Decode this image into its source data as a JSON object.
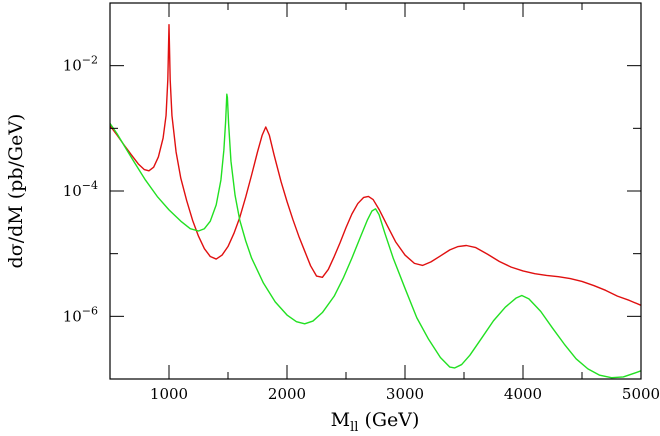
{
  "chart_data": {
    "type": "line",
    "xlabel_main": "M",
    "xlabel_sub": "ll",
    "xlabel_rest": "(GeV)",
    "ylabel": "dσ/dM (pb/GeV)",
    "y_scale": "log",
    "xlim": [
      500,
      5000
    ],
    "ylim": [
      1e-07,
      0.1
    ],
    "x_ticks": [
      {
        "value": 1000,
        "label": "1000"
      },
      {
        "value": 2000,
        "label": "2000"
      },
      {
        "value": 3000,
        "label": "3000"
      },
      {
        "value": 4000,
        "label": "4000"
      },
      {
        "value": 5000,
        "label": "5000"
      }
    ],
    "y_ticks": [
      {
        "value": 0.01,
        "base": "10",
        "exp": "−2"
      },
      {
        "value": 0.0001,
        "base": "10",
        "exp": "−4"
      },
      {
        "value": 1e-06,
        "base": "10",
        "exp": "−6"
      }
    ],
    "grid": false,
    "series": [
      {
        "color": "#e01010",
        "points": [
          [
            500,
            0.0011
          ],
          [
            560,
            0.00078
          ],
          [
            620,
            0.00054
          ],
          [
            680,
            0.00038
          ],
          [
            740,
            0.00027
          ],
          [
            790,
            0.00022
          ],
          [
            830,
            0.00021
          ],
          [
            870,
            0.00024
          ],
          [
            910,
            0.00035
          ],
          [
            950,
            0.0007
          ],
          [
            975,
            0.0016
          ],
          [
            990,
            0.006
          ],
          [
            1000,
            0.045
          ],
          [
            1010,
            0.006
          ],
          [
            1025,
            0.0016
          ],
          [
            1060,
            0.00042
          ],
          [
            1100,
            0.00016
          ],
          [
            1150,
            7e-05
          ],
          [
            1200,
            3.4e-05
          ],
          [
            1250,
            1.9e-05
          ],
          [
            1300,
            1.2e-05
          ],
          [
            1350,
            9e-06
          ],
          [
            1400,
            8.2e-06
          ],
          [
            1450,
            9.5e-06
          ],
          [
            1500,
            1.3e-05
          ],
          [
            1550,
            2.1e-05
          ],
          [
            1600,
            3.8e-05
          ],
          [
            1650,
            8e-05
          ],
          [
            1700,
            0.00018
          ],
          [
            1750,
            0.00042
          ],
          [
            1790,
            0.00078
          ],
          [
            1820,
            0.00105
          ],
          [
            1850,
            0.00078
          ],
          [
            1890,
            0.00038
          ],
          [
            1950,
            0.00014
          ],
          [
            2000,
            6.8e-05
          ],
          [
            2050,
            3.5e-05
          ],
          [
            2100,
            1.9e-05
          ],
          [
            2150,
            1.1e-05
          ],
          [
            2200,
            6.4e-06
          ],
          [
            2250,
            4.4e-06
          ],
          [
            2300,
            4.2e-06
          ],
          [
            2350,
            5.6e-06
          ],
          [
            2400,
            9e-06
          ],
          [
            2450,
            1.5e-05
          ],
          [
            2500,
            2.6e-05
          ],
          [
            2550,
            4.3e-05
          ],
          [
            2600,
            6.3e-05
          ],
          [
            2650,
            7.9e-05
          ],
          [
            2690,
            8.2e-05
          ],
          [
            2730,
            7.3e-05
          ],
          [
            2780,
            5.1e-05
          ],
          [
            2850,
            2.8e-05
          ],
          [
            2920,
            1.55e-05
          ],
          [
            3000,
            9.5e-06
          ],
          [
            3080,
            7e-06
          ],
          [
            3150,
            6.5e-06
          ],
          [
            3220,
            7.4e-06
          ],
          [
            3300,
            9.2e-06
          ],
          [
            3380,
            1.15e-05
          ],
          [
            3450,
            1.3e-05
          ],
          [
            3520,
            1.35e-05
          ],
          [
            3600,
            1.25e-05
          ],
          [
            3700,
            9.8e-06
          ],
          [
            3800,
            7.5e-06
          ],
          [
            3900,
            6.1e-06
          ],
          [
            4000,
            5.3e-06
          ],
          [
            4100,
            4.8e-06
          ],
          [
            4200,
            4.5e-06
          ],
          [
            4300,
            4.3e-06
          ],
          [
            4400,
            4e-06
          ],
          [
            4500,
            3.6e-06
          ],
          [
            4600,
            3.1e-06
          ],
          [
            4700,
            2.6e-06
          ],
          [
            4800,
            2.1e-06
          ],
          [
            4900,
            1.8e-06
          ],
          [
            5000,
            1.5e-06
          ]
        ]
      },
      {
        "color": "#22e022",
        "points": [
          [
            500,
            0.0012
          ],
          [
            560,
            0.00082
          ],
          [
            620,
            0.00053
          ],
          [
            700,
            0.0003
          ],
          [
            800,
            0.00015
          ],
          [
            900,
            8.2e-05
          ],
          [
            1000,
            5e-05
          ],
          [
            1100,
            3.3e-05
          ],
          [
            1180,
            2.5e-05
          ],
          [
            1250,
            2.3e-05
          ],
          [
            1300,
            2.5e-05
          ],
          [
            1350,
            3.3e-05
          ],
          [
            1400,
            6e-05
          ],
          [
            1440,
            0.00015
          ],
          [
            1465,
            0.00045
          ],
          [
            1480,
            0.0013
          ],
          [
            1490,
            0.0035
          ],
          [
            1495,
            0.0031
          ],
          [
            1505,
            0.0012
          ],
          [
            1525,
            0.0003
          ],
          [
            1560,
            8.5e-05
          ],
          [
            1600,
            3.4e-05
          ],
          [
            1650,
            1.6e-05
          ],
          [
            1700,
            8.5e-06
          ],
          [
            1800,
            3.4e-06
          ],
          [
            1900,
            1.7e-06
          ],
          [
            2000,
            1.05e-06
          ],
          [
            2080,
            8.2e-07
          ],
          [
            2150,
            7.6e-07
          ],
          [
            2220,
            8.4e-07
          ],
          [
            2300,
            1.15e-06
          ],
          [
            2400,
            2.1e-06
          ],
          [
            2480,
            4.2e-06
          ],
          [
            2550,
            8.5e-06
          ],
          [
            2620,
            1.8e-05
          ],
          [
            2680,
            3.4e-05
          ],
          [
            2720,
            4.8e-05
          ],
          [
            2750,
            5.2e-05
          ],
          [
            2780,
            4.2e-05
          ],
          [
            2830,
            2.1e-05
          ],
          [
            2900,
            8.5e-06
          ],
          [
            3000,
            2.8e-06
          ],
          [
            3100,
            9.5e-07
          ],
          [
            3200,
            4.3e-07
          ],
          [
            3300,
            2.2e-07
          ],
          [
            3380,
            1.55e-07
          ],
          [
            3420,
            1.5e-07
          ],
          [
            3480,
            1.7e-07
          ],
          [
            3550,
            2.4e-07
          ],
          [
            3650,
            4.5e-07
          ],
          [
            3750,
            8.5e-07
          ],
          [
            3850,
            1.4e-06
          ],
          [
            3940,
            1.95e-06
          ],
          [
            3990,
            2.15e-06
          ],
          [
            4050,
            1.9e-06
          ],
          [
            4150,
            1.2e-06
          ],
          [
            4250,
            6.5e-07
          ],
          [
            4350,
            3.6e-07
          ],
          [
            4450,
            2.1e-07
          ],
          [
            4550,
            1.45e-07
          ],
          [
            4650,
            1.15e-07
          ],
          [
            4750,
            1.05e-07
          ],
          [
            4850,
            1.08e-07
          ],
          [
            4950,
            1.25e-07
          ],
          [
            5000,
            1.35e-07
          ]
        ]
      }
    ]
  }
}
